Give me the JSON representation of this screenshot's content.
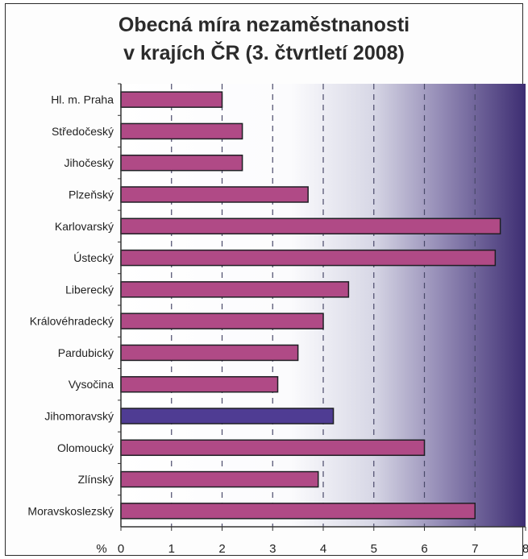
{
  "chart_data": {
    "type": "bar",
    "orientation": "horizontal",
    "title": [
      "Obecná míra nezaměstnanosti",
      "v krajích ČR (3. čtvrtletí 2008)"
    ],
    "xlabel": "%",
    "xlim": [
      0,
      8
    ],
    "xticks": [
      "0",
      "1",
      "2",
      "3",
      "4",
      "5",
      "6",
      "7",
      "8"
    ],
    "grid": "vertical dashed",
    "categories": [
      "Hl. m. Praha",
      "Středočeský",
      "Jihočeský",
      "Plzeňský",
      "Karlovarský",
      "Ústecký",
      "Liberecký",
      "Královéhradecký",
      "Pardubický",
      "Vysočina",
      "Jihomoravský",
      "Olomoucký",
      "Zlínský",
      "Moravskoslezský"
    ],
    "values": [
      2.0,
      2.4,
      2.4,
      3.7,
      7.5,
      7.4,
      4.5,
      4.0,
      3.5,
      3.1,
      4.2,
      6.0,
      3.9,
      7.0
    ],
    "highlight_index": 10,
    "colors": {
      "bar": "#b04a86",
      "bar_highlight": "#4f3c93",
      "bar_edge": "#1f1f24",
      "background_light": "#ffffff",
      "background_dark": "#3d2d72",
      "grid": "#4a4a6a"
    }
  }
}
